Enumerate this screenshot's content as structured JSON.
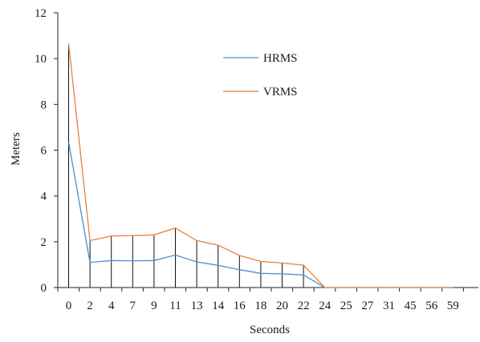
{
  "chart_data": {
    "type": "line",
    "title": "",
    "xlabel": "Seconds",
    "ylabel": "Meters",
    "categories": [
      "0",
      "2",
      "4",
      "7",
      "9",
      "11",
      "13",
      "14",
      "16",
      "18",
      "20",
      "22",
      "24",
      "25",
      "27",
      "31",
      "45",
      "56",
      "59"
    ],
    "ylim": [
      0,
      12
    ],
    "yticks": [
      0,
      2,
      4,
      6,
      8,
      10,
      12
    ],
    "grid": false,
    "legend_placement": "top-center",
    "drop_lines": true,
    "series": [
      {
        "name": "HRMS",
        "color": "#4a8fd1",
        "values": [
          6.35,
          1.1,
          1.18,
          1.17,
          1.18,
          1.42,
          1.12,
          0.97,
          0.78,
          0.62,
          0.6,
          0.55,
          0,
          0,
          0,
          0,
          0,
          0,
          0
        ]
      },
      {
        "name": "VRMS",
        "color": "#e8803a",
        "values": [
          10.65,
          2.05,
          2.25,
          2.27,
          2.3,
          2.6,
          2.05,
          1.85,
          1.4,
          1.14,
          1.07,
          0.98,
          0,
          0,
          0,
          0,
          0,
          0,
          0
        ]
      }
    ]
  }
}
